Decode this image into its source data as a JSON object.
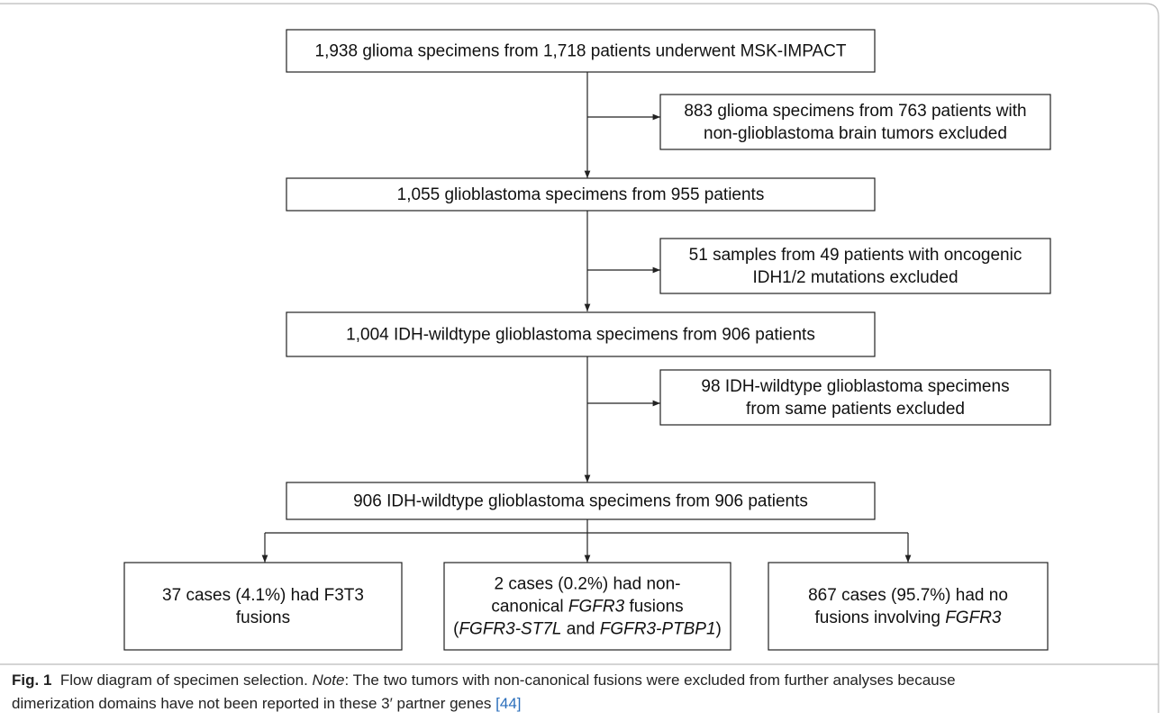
{
  "nodes": [
    {
      "lines": [
        [
          {
            "text": "1,938 glioma specimens from 1,718 patients underwent MSK-IMPACT"
          }
        ]
      ]
    },
    {
      "lines": [
        [
          {
            "text": "883 glioma specimens from 763 patients with"
          }
        ],
        [
          {
            "text": "non-glioblastoma brain tumors excluded"
          }
        ]
      ]
    },
    {
      "lines": [
        [
          {
            "text": "1,055 glioblastoma specimens from 955 patients"
          }
        ]
      ]
    },
    {
      "lines": [
        [
          {
            "text": "51 samples from 49 patients with oncogenic"
          }
        ],
        [
          {
            "text": "IDH1/2 mutations excluded"
          }
        ]
      ]
    },
    {
      "lines": [
        [
          {
            "text": "1,004 IDH-wildtype glioblastoma specimens from 906 patients"
          }
        ]
      ]
    },
    {
      "lines": [
        [
          {
            "text": "98 IDH-wildtype glioblastoma specimens"
          }
        ],
        [
          {
            "text": "from same patients excluded"
          }
        ]
      ]
    },
    {
      "lines": [
        [
          {
            "text": "906 IDH-wildtype glioblastoma specimens from 906 patients"
          }
        ]
      ]
    },
    {
      "lines": [
        [
          {
            "text": "37 cases (4.1%) had F3T3"
          }
        ],
        [
          {
            "text": "fusions"
          }
        ]
      ]
    },
    {
      "lines": [
        [
          {
            "text": "2 cases (0.2%) had non-"
          }
        ],
        [
          {
            "text": "canonical "
          },
          {
            "text": "FGFR3",
            "style": "italic"
          },
          {
            "text": " fusions"
          }
        ],
        [
          {
            "text": "("
          },
          {
            "text": "FGFR3-ST7L",
            "style": "italic"
          },
          {
            "text": " and "
          },
          {
            "text": "FGFR3-PTBP1",
            "style": "italic"
          },
          {
            "text": ")"
          }
        ]
      ]
    },
    {
      "lines": [
        [
          {
            "text": "867 cases (95.7%) had no"
          }
        ],
        [
          {
            "text": "fusions involving "
          },
          {
            "text": "FGFR3",
            "style": "italic"
          }
        ]
      ]
    }
  ],
  "caption": {
    "lines": [
      [
        {
          "text": "Fig. 1",
          "style": "bold"
        },
        {
          "text": "  Flow diagram of specimen selection. "
        },
        {
          "text": "Note",
          "style": "italic"
        },
        {
          "text": ": The two tumors with non-canonical fusions were excluded from further analyses because"
        }
      ],
      [
        {
          "text": "dimerization domains have not been reported in these 3′ partner genes "
        },
        {
          "text": "[44]",
          "style": "link"
        }
      ]
    ]
  }
}
